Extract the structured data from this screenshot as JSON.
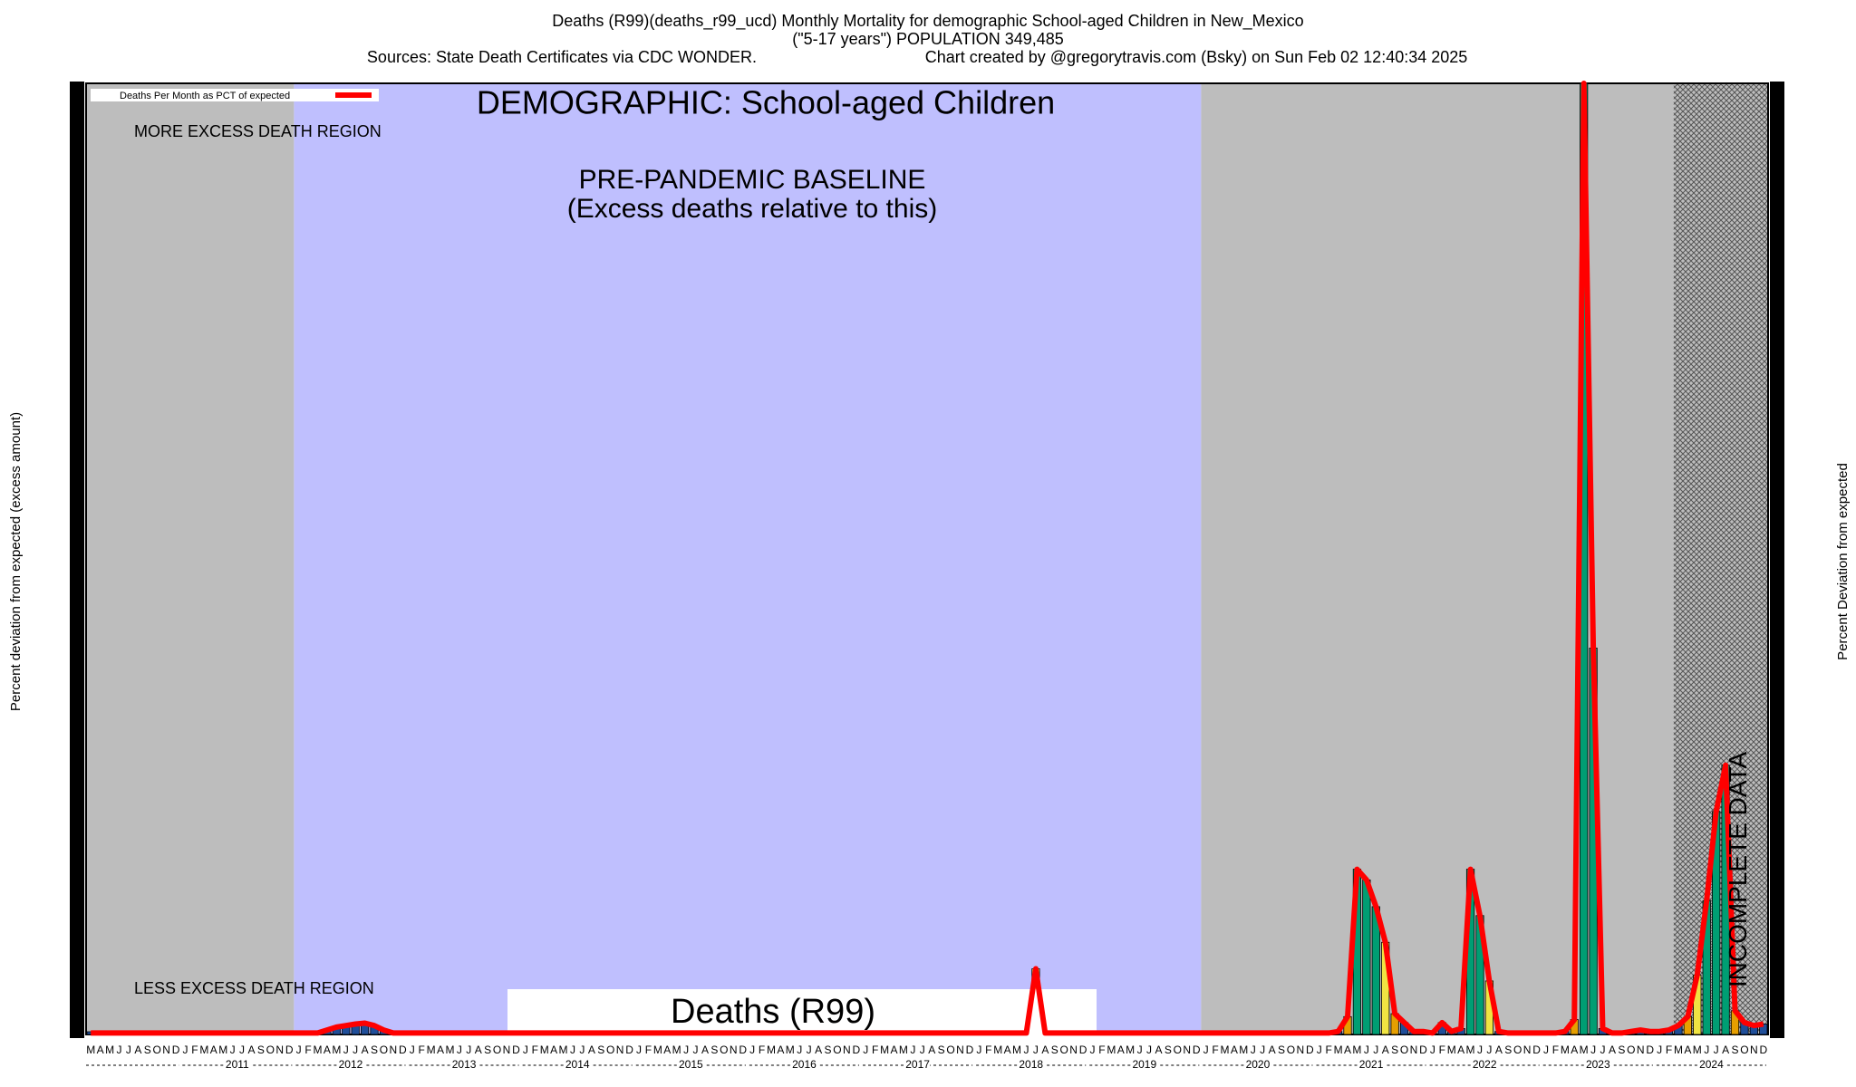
{
  "chart_data": {
    "type": "bar",
    "title": "Deaths (R99)(deaths_r99_ucd) Monthly Mortality for demographic School-aged Children in New_Mexico",
    "subtitle": "(\"5-17 years\") POPULATION 349,485",
    "sources": "Sources: State Death Certificates via CDC WONDER.",
    "credit": "Chart created by @gregorytravis.com (Bsky) on Sun Feb 02 12:40:34 2025",
    "demographic_label": "DEMOGRAPHIC: School-aged Children",
    "baseline_label": "PRE-PANDEMIC BASELINE",
    "baseline_note": "(Excess deaths relative to this)",
    "more_label": "MORE EXCESS DEATH REGION",
    "less_label": "LESS EXCESS DEATH REGION",
    "incomplete_label": "INCOMPLETE DATA",
    "cause_label": "Deaths (R99)",
    "y_label": "Percent deviation from expected (excess amount)",
    "y2_label": "Percent Deviation from expected",
    "ylim": [
      -100,
      3100
    ],
    "line_color": "#ff0000",
    "bar_colors": [
      "#1f4e99",
      "#e69f00",
      "#f0e442",
      "#009e73"
    ],
    "years": [
      "2011",
      "2012",
      "2013",
      "2014",
      "2015",
      "2016",
      "2017",
      "2018",
      "2019",
      "2020",
      "2021",
      "2022",
      "2023",
      "2024"
    ],
    "categories": [
      "M",
      "A",
      "M",
      "J",
      "J",
      "A",
      "S",
      "O",
      "N",
      "D",
      "J",
      "F",
      "M",
      "A",
      "M",
      "J",
      "J",
      "A",
      "S",
      "O",
      "N",
      "D",
      "J",
      "F",
      "M",
      "A",
      "M",
      "J",
      "J",
      "A",
      "S",
      "O",
      "N",
      "D",
      "J",
      "F",
      "M",
      "A",
      "M",
      "J",
      "J",
      "A",
      "S",
      "O",
      "N",
      "D",
      "J",
      "F",
      "M",
      "A",
      "M",
      "J",
      "J",
      "A",
      "S",
      "O",
      "N",
      "D",
      "J",
      "F",
      "M",
      "A",
      "M",
      "J",
      "J",
      "A",
      "S",
      "O",
      "N",
      "D",
      "J",
      "F",
      "M",
      "A",
      "M",
      "J",
      "J",
      "A",
      "S",
      "O",
      "N",
      "D",
      "J",
      "F",
      "M",
      "A",
      "M",
      "J",
      "J",
      "A",
      "S",
      "O",
      "N",
      "D",
      "J",
      "F",
      "M",
      "A",
      "M",
      "J",
      "J",
      "A",
      "S",
      "O",
      "N",
      "D",
      "J",
      "F",
      "M",
      "A",
      "M",
      "J",
      "J",
      "A",
      "S",
      "O",
      "N",
      "D",
      "J",
      "F",
      "M",
      "A",
      "M",
      "J",
      "J",
      "A",
      "S",
      "O",
      "N",
      "D",
      "J",
      "F",
      "M",
      "A",
      "M",
      "J",
      "J",
      "A",
      "S",
      "O",
      "N",
      "D",
      "J",
      "F",
      "M",
      "A",
      "M",
      "J",
      "J",
      "A",
      "S",
      "O",
      "N",
      "D",
      "J",
      "F",
      "M",
      "A",
      "M",
      "J",
      "J",
      "A",
      "S",
      "O",
      "N",
      "D",
      "J",
      "F",
      "M",
      "A",
      "M",
      "J",
      "J",
      "A",
      "S",
      "O",
      "N",
      "D"
    ],
    "series": [
      {
        "name": "Deaths Per Month as PCT of expected",
        "values": [
          -95,
          -95,
          -95,
          -95,
          -95,
          -95,
          -95,
          -95,
          -95,
          -95,
          -95,
          -95,
          -95,
          -95,
          -95,
          -95,
          -95,
          -95,
          -95,
          -95,
          -95,
          -95,
          -95,
          -95,
          -95,
          -85,
          -75,
          -70,
          -65,
          -62,
          -70,
          -85,
          -95,
          -95,
          -95,
          -95,
          -95,
          -95,
          -95,
          -95,
          -95,
          -95,
          -95,
          -95,
          -95,
          -95,
          -95,
          -95,
          -95,
          -95,
          -95,
          -95,
          -95,
          -95,
          -95,
          -95,
          -95,
          -95,
          -95,
          -95,
          -95,
          -95,
          -95,
          -95,
          -95,
          -95,
          -95,
          -95,
          -95,
          -95,
          -95,
          -95,
          -95,
          -95,
          -95,
          -95,
          -95,
          -95,
          -95,
          -95,
          -95,
          -95,
          -95,
          -95,
          -95,
          -95,
          -95,
          -95,
          -95,
          -95,
          -95,
          -95,
          -95,
          -95,
          -95,
          -95,
          -95,
          -95,
          -95,
          -95,
          121,
          -95,
          -95,
          -95,
          -95,
          -95,
          -95,
          -95,
          -95,
          -95,
          -95,
          -95,
          -95,
          -95,
          -95,
          -95,
          -95,
          -95,
          -95,
          -95,
          -95,
          -95,
          -95,
          -95,
          -95,
          -95,
          -95,
          -95,
          -95,
          -95,
          -95,
          -95,
          -90,
          -40,
          456,
          420,
          330,
          210,
          -30,
          -60,
          -90,
          -90,
          -95,
          -60,
          -90,
          -80,
          456,
          300,
          80,
          -90,
          -95,
          -95,
          -95,
          -95,
          -95,
          -95,
          -90,
          -50,
          3100,
          1200,
          -80,
          -95,
          -95,
          -90,
          -85,
          -90,
          -90,
          -85,
          -70,
          -40,
          100,
          350,
          650,
          806,
          -20,
          -60,
          -70,
          -65
        ]
      }
    ]
  }
}
